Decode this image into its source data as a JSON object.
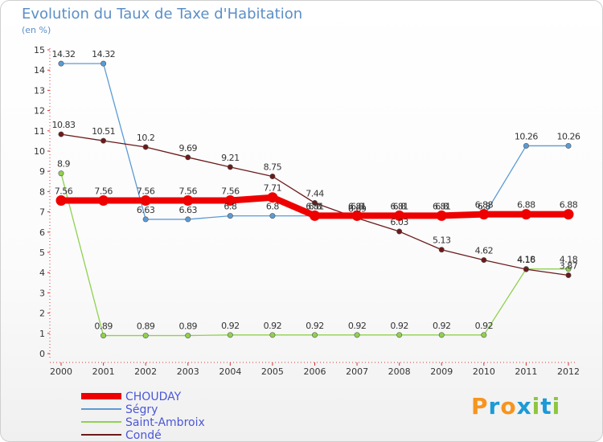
{
  "title": "Evolution du Taux de Taxe d'Habitation",
  "subtitle": "(en %)",
  "logo": {
    "text": "Proxiti",
    "letters": [
      "P",
      "r",
      "o",
      "x",
      "i",
      "t",
      "i"
    ],
    "colors": [
      "#f7941d",
      "#1c9ad6",
      "#f7941d",
      "#1c9ad6",
      "#8dc63f",
      "#1c9ad6",
      "#8dc63f"
    ]
  },
  "chart_data": {
    "type": "line",
    "x": [
      "2000",
      "2001",
      "2002",
      "2003",
      "2004",
      "2005",
      "2006",
      "2007",
      "2008",
      "2009",
      "2010",
      "2011",
      "2012"
    ],
    "ylim": [
      0,
      15
    ],
    "yticks": [
      "0",
      "1",
      "2",
      "3",
      "4",
      "5",
      "6",
      "7",
      "8",
      "9",
      "10",
      "11",
      "12",
      "13",
      "14",
      "15"
    ],
    "grid": false,
    "legend_position": "bottom-left",
    "series": [
      {
        "name": "CHOUDAY",
        "color": "#ee0000",
        "emphasis": true,
        "values": [
          7.56,
          7.56,
          7.56,
          7.56,
          7.56,
          7.71,
          6.81,
          6.81,
          6.81,
          6.81,
          6.88,
          6.88,
          6.88
        ],
        "labels": [
          "7.56",
          "7.56",
          "7.56",
          "7.56",
          "7.56",
          "7.71",
          "6.81",
          "6.81",
          "6.81",
          "6.81",
          "6.88",
          "6.88",
          "6.88"
        ]
      },
      {
        "name": "Ségry",
        "color": "#5b9bd5",
        "values": [
          14.32,
          14.32,
          6.63,
          6.63,
          6.8,
          6.8,
          6.8,
          6.8,
          6.8,
          6.8,
          6.8,
          10.26,
          10.26
        ],
        "labels": [
          "14.32",
          "14.32",
          "6.63",
          "6.63",
          "6.8",
          "6.8",
          "6.8",
          "6.8",
          "6.8",
          "6.8",
          "6.8",
          "10.26",
          "10.26"
        ]
      },
      {
        "name": "Saint-Ambroix",
        "color": "#8fd14f",
        "values": [
          8.9,
          0.89,
          0.89,
          0.89,
          0.92,
          0.92,
          0.92,
          0.92,
          0.92,
          0.92,
          0.92,
          4.18,
          4.18
        ],
        "labels": [
          "8.9",
          "0.89",
          "0.89",
          "0.89",
          "0.92",
          "0.92",
          "0.92",
          "0.92",
          "0.92",
          "0.92",
          "0.92",
          "4.18",
          "4.18"
        ]
      },
      {
        "name": "Condé",
        "color": "#6b1a1a",
        "values": [
          10.83,
          10.51,
          10.2,
          9.69,
          9.21,
          8.75,
          7.44,
          6.69,
          6.03,
          5.13,
          4.62,
          4.16,
          3.87
        ],
        "labels": [
          "10.83",
          "10.51",
          "10.2",
          "9.69",
          "9.21",
          "8.75",
          "7.44",
          "6.69",
          "6.03",
          "5.13",
          "4.62",
          "4.16",
          "3.87"
        ]
      }
    ]
  }
}
